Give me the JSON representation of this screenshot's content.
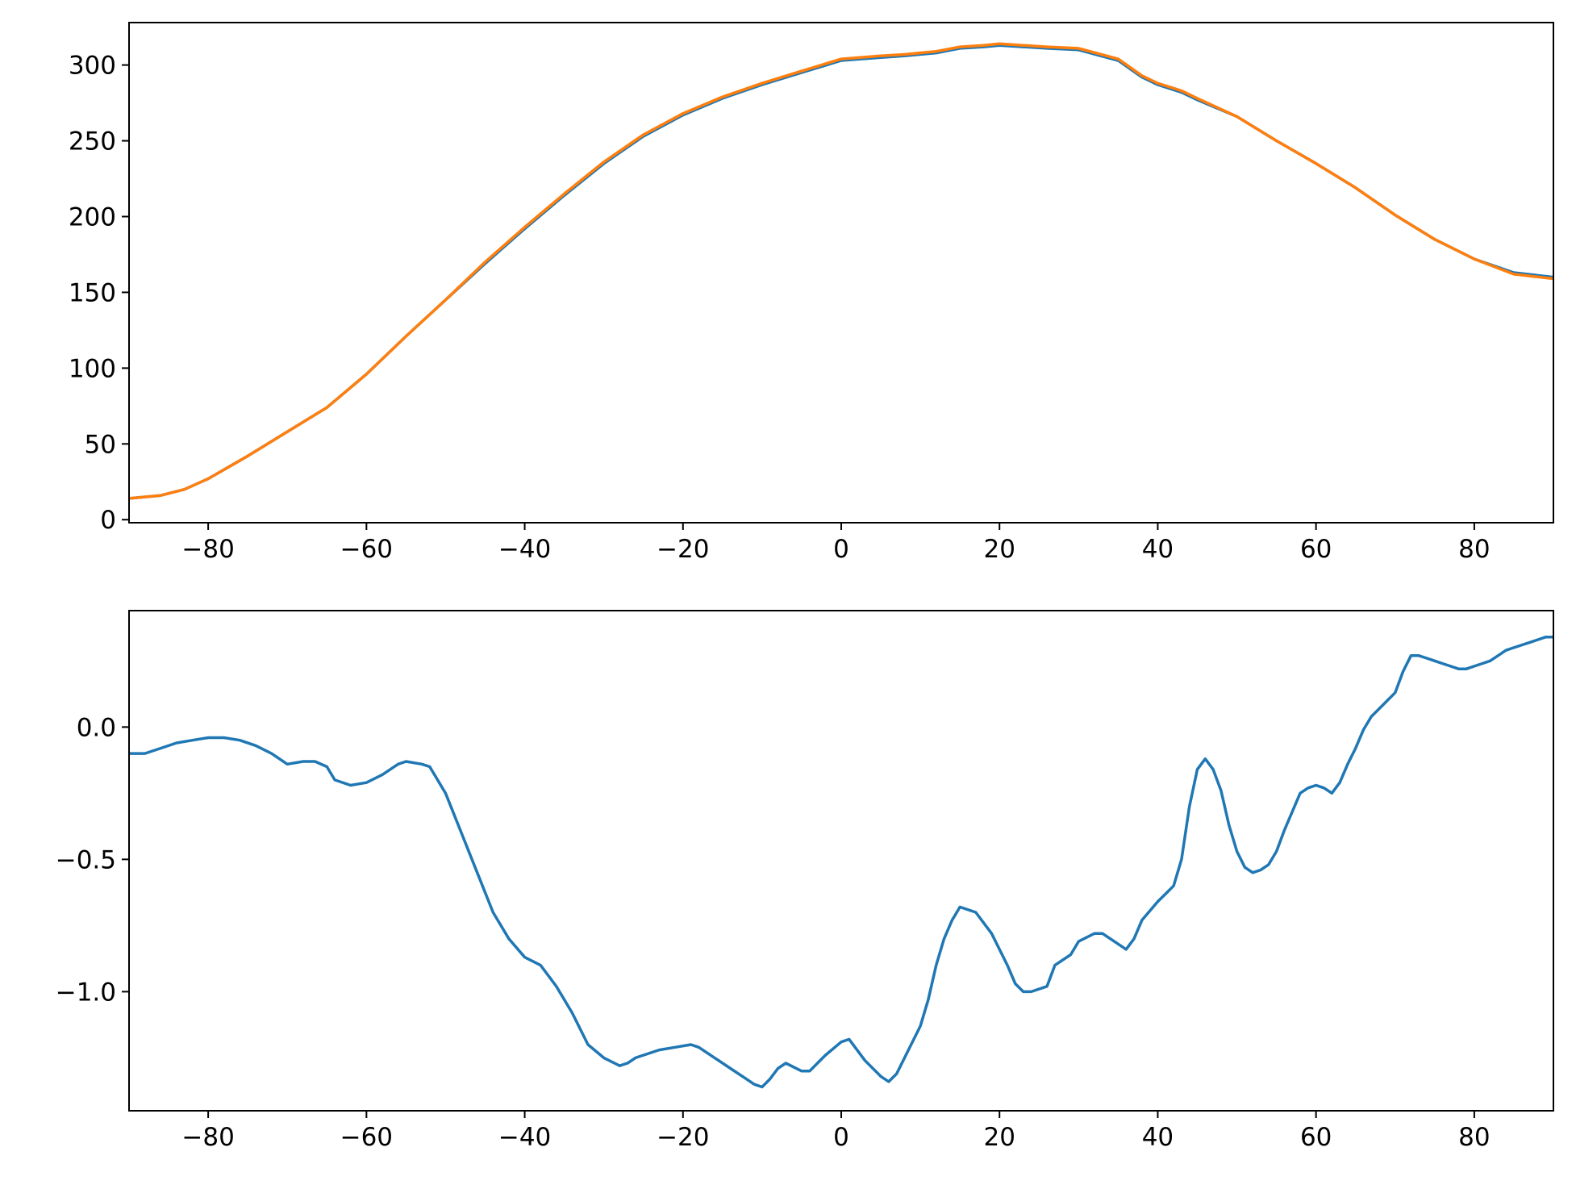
{
  "chart_data": [
    {
      "type": "line",
      "title": "",
      "xlabel": "",
      "ylabel": "",
      "xlim": [
        -90,
        90
      ],
      "ylim": [
        -2,
        328
      ],
      "grid": false,
      "legend": "none",
      "xticks": [
        -80,
        -60,
        -40,
        -20,
        0,
        20,
        40,
        60,
        80
      ],
      "xtick_labels": [
        "−80",
        "−60",
        "−40",
        "−20",
        "0",
        "20",
        "40",
        "60",
        "80"
      ],
      "yticks": [
        0,
        50,
        100,
        150,
        200,
        250,
        300
      ],
      "ytick_labels": [
        "0",
        "50",
        "100",
        "150",
        "200",
        "250",
        "300"
      ],
      "series": [
        {
          "color": "#1f77b4",
          "x": [
            -90,
            -86,
            -83,
            -80,
            -75,
            -70,
            -65,
            -60,
            -55,
            -50,
            -45,
            -40,
            -35,
            -30,
            -25,
            -20,
            -15,
            -10,
            -5,
            0,
            5,
            8,
            12,
            15,
            18,
            20,
            23,
            26,
            30,
            35,
            38,
            40,
            43,
            45,
            50,
            55,
            60,
            65,
            70,
            75,
            80,
            85,
            90
          ],
          "values": [
            14,
            16,
            20,
            27,
            42,
            58,
            74,
            96,
            121,
            145,
            169,
            192,
            214,
            235,
            253,
            267,
            278,
            287,
            295,
            303,
            305,
            306,
            308,
            311,
            312,
            313,
            312,
            311,
            310,
            303,
            292,
            287,
            282,
            277,
            266,
            250,
            235,
            219,
            201,
            185,
            172,
            163,
            160
          ]
        },
        {
          "color": "#ff7f0e",
          "x": [
            -90,
            -86,
            -83,
            -80,
            -75,
            -70,
            -65,
            -60,
            -55,
            -50,
            -45,
            -40,
            -35,
            -30,
            -25,
            -20,
            -15,
            -10,
            -5,
            0,
            5,
            8,
            12,
            15,
            18,
            20,
            23,
            26,
            30,
            35,
            38,
            40,
            43,
            45,
            50,
            55,
            60,
            65,
            70,
            75,
            80,
            85,
            90
          ],
          "values": [
            14,
            16,
            20,
            27,
            42,
            58,
            74,
            96,
            121,
            145,
            170,
            193,
            215,
            236,
            254,
            268,
            279,
            288,
            296,
            304,
            306,
            307,
            309,
            312,
            313,
            314,
            313,
            312,
            311,
            304,
            293,
            288,
            283,
            278,
            266,
            250,
            235,
            219,
            201,
            185,
            172,
            162,
            159
          ]
        }
      ]
    },
    {
      "type": "line",
      "title": "",
      "xlabel": "",
      "ylabel": "",
      "xlim": [
        -90,
        90
      ],
      "ylim": [
        -1.45,
        0.44
      ],
      "grid": false,
      "legend": "none",
      "xticks": [
        -80,
        -60,
        -40,
        -20,
        0,
        20,
        40,
        60,
        80
      ],
      "xtick_labels": [
        "−80",
        "−60",
        "−40",
        "−20",
        "0",
        "20",
        "40",
        "60",
        "80"
      ],
      "yticks": [
        0.0,
        -0.5,
        -1.0
      ],
      "ytick_labels": [
        "0.0",
        "−0.5",
        "−1.0"
      ],
      "series": [
        {
          "color": "#1f77b4",
          "x": [
            -90,
            -88,
            -86,
            -84,
            -82,
            -80,
            -78,
            -76,
            -74,
            -72,
            -70,
            -68,
            -66.5,
            -65,
            -64,
            -62,
            -60,
            -58,
            -56,
            -55,
            -53,
            -52,
            -50,
            -48,
            -46,
            -44,
            -42,
            -40,
            -38,
            -36,
            -34,
            -32,
            -30,
            -28,
            -27,
            -26,
            -25,
            -23,
            -21,
            -19,
            -18,
            -16,
            -14,
            -12,
            -11,
            -10,
            -9,
            -8,
            -7,
            -5,
            -4,
            -2,
            0,
            1,
            3,
            5,
            6,
            7,
            8,
            10,
            11,
            12,
            13,
            14,
            15,
            17,
            19,
            21,
            22,
            23,
            24,
            26,
            27,
            29,
            30,
            32,
            33,
            35,
            36,
            37,
            38,
            40,
            41,
            42,
            43,
            44,
            45,
            46,
            47,
            48,
            49,
            50,
            51,
            52,
            53,
            54,
            55,
            56,
            57,
            58,
            59,
            60,
            61,
            62,
            63,
            64,
            65,
            66,
            67,
            68,
            69,
            70,
            71,
            72,
            73,
            74,
            75,
            76,
            77,
            78,
            79,
            80,
            81,
            82,
            83,
            84,
            85,
            86,
            87,
            88,
            89,
            90
          ],
          "values": [
            -0.1,
            -0.1,
            -0.08,
            -0.06,
            -0.05,
            -0.04,
            -0.04,
            -0.05,
            -0.07,
            -0.1,
            -0.14,
            -0.13,
            -0.13,
            -0.15,
            -0.2,
            -0.22,
            -0.21,
            -0.18,
            -0.14,
            -0.13,
            -0.14,
            -0.15,
            -0.25,
            -0.4,
            -0.55,
            -0.7,
            -0.8,
            -0.87,
            -0.9,
            -0.98,
            -1.08,
            -1.2,
            -1.25,
            -1.28,
            -1.27,
            -1.25,
            -1.24,
            -1.22,
            -1.21,
            -1.2,
            -1.21,
            -1.25,
            -1.29,
            -1.33,
            -1.35,
            -1.36,
            -1.33,
            -1.29,
            -1.27,
            -1.3,
            -1.3,
            -1.24,
            -1.19,
            -1.18,
            -1.26,
            -1.32,
            -1.34,
            -1.31,
            -1.25,
            -1.13,
            -1.03,
            -0.9,
            -0.8,
            -0.73,
            -0.68,
            -0.7,
            -0.78,
            -0.9,
            -0.97,
            -1.0,
            -1.0,
            -0.98,
            -0.9,
            -0.86,
            -0.81,
            -0.78,
            -0.78,
            -0.82,
            -0.84,
            -0.8,
            -0.73,
            -0.66,
            -0.63,
            -0.6,
            -0.5,
            -0.3,
            -0.16,
            -0.12,
            -0.16,
            -0.24,
            -0.37,
            -0.47,
            -0.53,
            -0.55,
            -0.54,
            -0.52,
            -0.47,
            -0.39,
            -0.32,
            -0.25,
            -0.23,
            -0.22,
            -0.23,
            -0.25,
            -0.21,
            -0.14,
            -0.08,
            -0.01,
            0.04,
            0.07,
            0.1,
            0.13,
            0.21,
            0.27,
            0.27,
            0.26,
            0.25,
            0.24,
            0.23,
            0.22,
            0.22,
            0.23,
            0.24,
            0.25,
            0.27,
            0.29,
            0.3,
            0.31,
            0.32,
            0.33,
            0.34,
            0.34
          ]
        }
      ]
    }
  ]
}
